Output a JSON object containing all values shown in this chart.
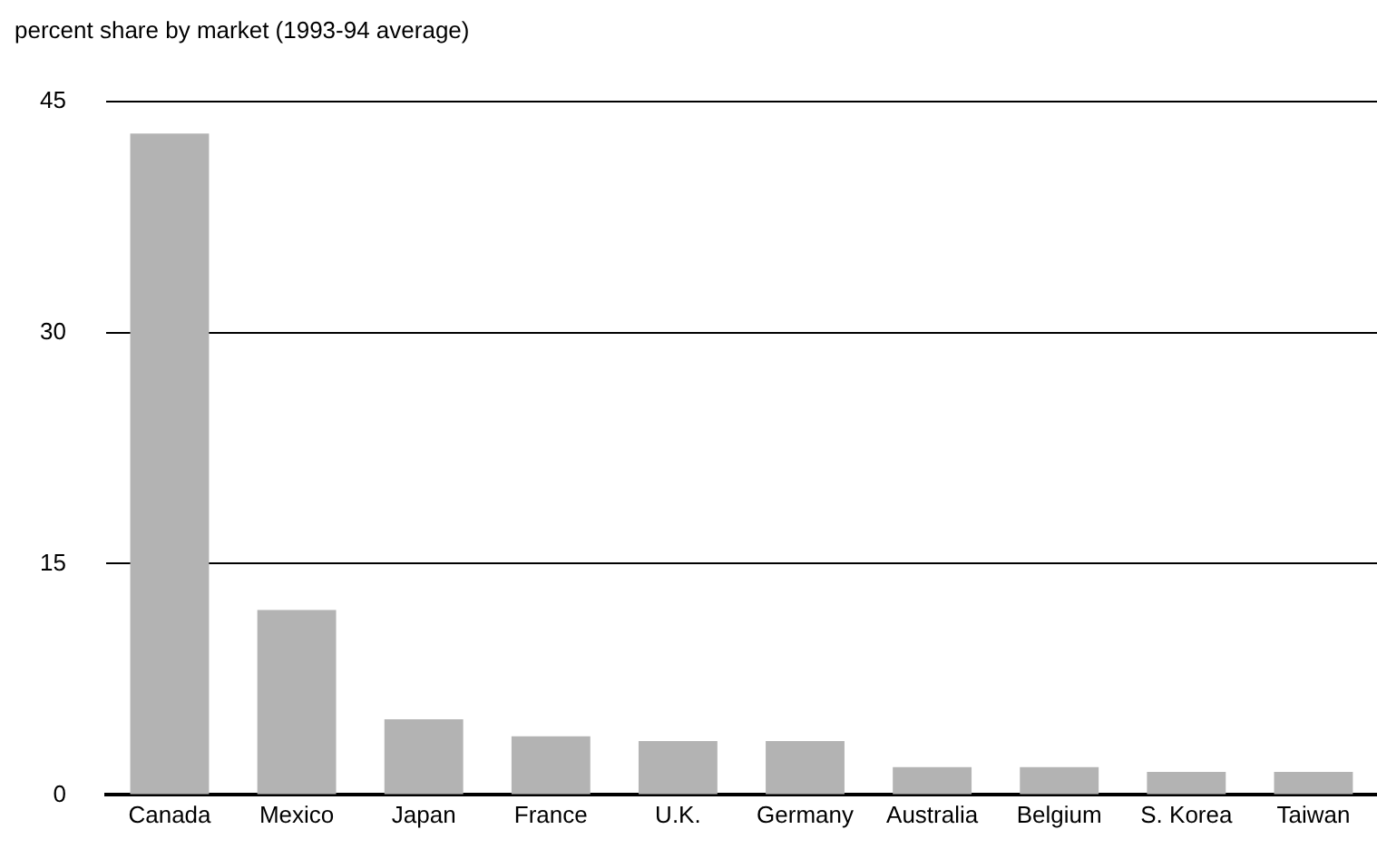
{
  "chart_data": {
    "type": "bar",
    "title": "percent share by market (1993-94 average)",
    "categories": [
      "Canada",
      "Mexico",
      "Japan",
      "France",
      "U.K.",
      "Germany",
      "Australia",
      "Belgium",
      "S. Korea",
      "Taiwan"
    ],
    "values": [
      42.9,
      12.0,
      4.9,
      3.8,
      3.5,
      3.5,
      1.8,
      1.8,
      1.5,
      1.5
    ],
    "color": "#b3b3b3",
    "ylim": [
      0,
      45
    ],
    "yticks": [
      0,
      15,
      30,
      45
    ],
    "grid": "y"
  }
}
